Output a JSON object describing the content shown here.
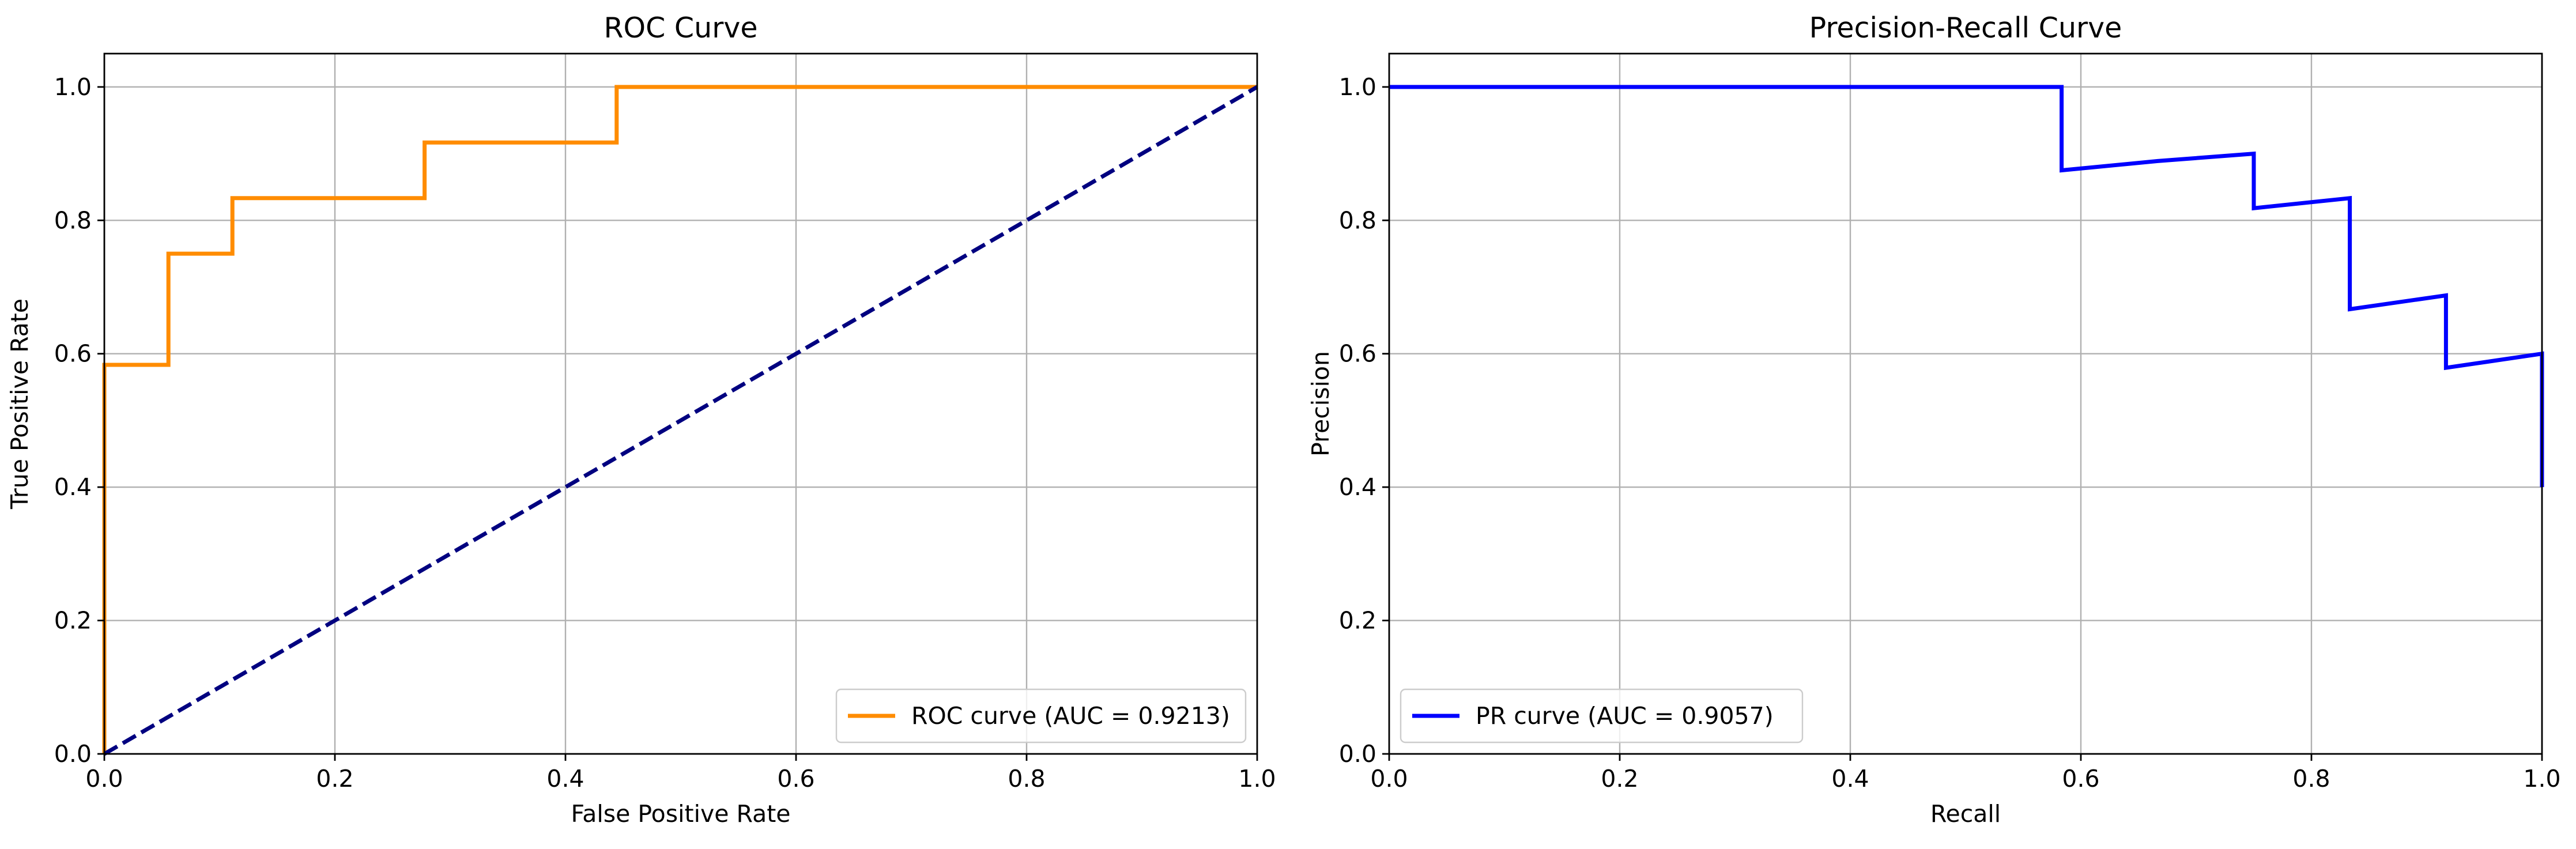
{
  "chart_data": [
    {
      "type": "line",
      "title": "ROC Curve",
      "xlabel": "False Positive Rate",
      "ylabel": "True Positive Rate",
      "xlim": [
        0.0,
        1.0
      ],
      "ylim": [
        0.0,
        1.05
      ],
      "xticks": [
        "0.0",
        "0.2",
        "0.4",
        "0.6",
        "0.8",
        "1.0"
      ],
      "yticks": [
        "0.0",
        "0.2",
        "0.4",
        "0.6",
        "0.8",
        "1.0"
      ],
      "grid": true,
      "legend_position": "lower-right",
      "series": [
        {
          "name": "ROC curve (AUC = 0.9213)",
          "color": "#ff8c00",
          "style": "solid",
          "x": [
            0.0,
            0.0,
            0.0,
            0.0556,
            0.0556,
            0.1111,
            0.1111,
            0.2778,
            0.2778,
            0.4444,
            0.4444,
            1.0
          ],
          "y": [
            0.0,
            0.5833,
            0.5833,
            0.5833,
            0.75,
            0.75,
            0.8333,
            0.8333,
            0.9167,
            0.9167,
            1.0,
            1.0
          ]
        },
        {
          "name": "",
          "color": "#000080",
          "style": "dashed",
          "x": [
            0.0,
            1.0
          ],
          "y": [
            0.0,
            1.0
          ]
        }
      ]
    },
    {
      "type": "line",
      "title": "Precision-Recall Curve",
      "xlabel": "Recall",
      "ylabel": "Precision",
      "xlim": [
        0.0,
        1.0
      ],
      "ylim": [
        0.0,
        1.05
      ],
      "xticks": [
        "0.0",
        "0.2",
        "0.4",
        "0.6",
        "0.8",
        "1.0"
      ],
      "yticks": [
        "0.0",
        "0.2",
        "0.4",
        "0.6",
        "0.8",
        "1.0"
      ],
      "grid": true,
      "legend_position": "lower-left",
      "series": [
        {
          "name": "PR curve (AUC = 0.9057)",
          "color": "#0000ff",
          "style": "solid",
          "x": [
            0.0,
            0.5833,
            0.5833,
            0.6667,
            0.75,
            0.75,
            0.8333,
            0.8333,
            0.9167,
            0.9167,
            1.0,
            1.0
          ],
          "y": [
            1.0,
            1.0,
            0.875,
            0.8889,
            0.9,
            0.8182,
            0.8333,
            0.6667,
            0.6875,
            0.5789,
            0.6,
            0.4
          ]
        }
      ]
    }
  ]
}
